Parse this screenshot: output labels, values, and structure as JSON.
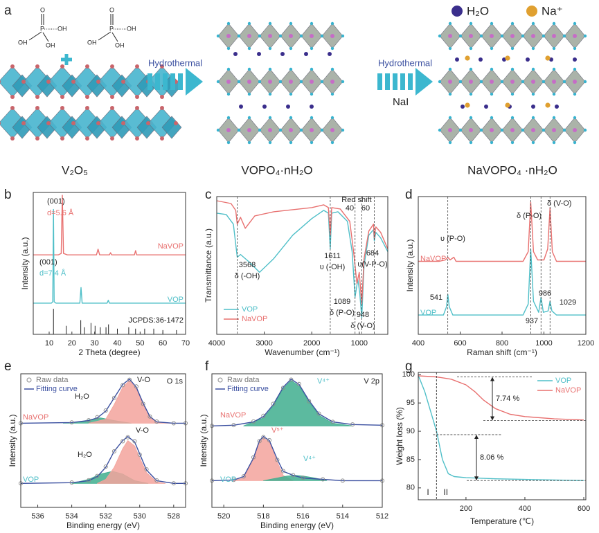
{
  "panel_a": {
    "label": "a",
    "molecule": [
      "O",
      "P",
      "OH",
      "OH",
      "OH"
    ],
    "legend": [
      "H₂O",
      "Na⁺"
    ],
    "arrows": [
      {
        "label": "Hydrothermal"
      },
      {
        "label": "Hydrothermal",
        "reagent": "NaI"
      }
    ],
    "materials": [
      "V₂O₅",
      "VOPO₄·nH₂O",
      "NaVOPO₄ ·nH₂O"
    ]
  },
  "chart_data": [
    {
      "label": "b",
      "type": "line",
      "xlabel": "2 Theta (degree)",
      "ylabel": "Intensity (a.u.)",
      "xlim": [
        3,
        70
      ],
      "ylim": [
        0,
        100
      ],
      "xticks": [
        10,
        20,
        30,
        40,
        50,
        60,
        70
      ],
      "annotations": [
        "(001)",
        "d=5.6 Å",
        "(001)",
        "d=7.4 Å"
      ],
      "series": [
        {
          "name": "NaVOP",
          "style": "line",
          "color": "#e8706f",
          "x": [
            3,
            14,
            15.3,
            15.8,
            16.3,
            18,
            30.8,
            31.5,
            32.2,
            36.5,
            37,
            37.5,
            47.5,
            48,
            48.5,
            60,
            70
          ],
          "values": [
            56,
            56,
            57,
            98,
            57,
            56,
            56,
            60,
            56,
            56,
            57.5,
            56,
            56,
            59,
            56,
            56,
            56
          ]
        },
        {
          "name": "VOP",
          "style": "line",
          "color": "#4fbfc8",
          "x": [
            3,
            11,
            11.6,
            11.9,
            12.2,
            13,
            23.5,
            24,
            24.5,
            35.5,
            36,
            36.5,
            70
          ],
          "values": [
            22,
            22,
            23,
            88,
            23,
            22,
            22,
            33,
            22,
            22,
            24,
            22,
            22
          ]
        },
        {
          "name": "JCPDS:36-1472",
          "style": "stick",
          "color": "#222222",
          "x": [
            11.9,
            17.5,
            23.9,
            25.5,
            28.4,
            30.2,
            32.5,
            35,
            36.1,
            40,
            45,
            48,
            52,
            56,
            60,
            66
          ],
          "values": [
            18,
            6,
            10,
            5,
            8,
            6,
            5,
            5,
            7,
            4,
            5,
            4,
            4,
            4,
            3,
            3
          ]
        }
      ]
    },
    {
      "label": "c",
      "type": "line",
      "xlabel": "Wavenumber (cm⁻¹)",
      "ylabel": "Transmittance (a.u.)",
      "xlim": [
        4000,
        400
      ],
      "ylim": [
        0,
        100
      ],
      "xticks": [
        4000,
        3000,
        2000,
        1000
      ],
      "legend_position": "lower left",
      "peaks": [
        {
          "value": 3568,
          "label": "3568",
          "assignment": "δ (-OH)"
        },
        {
          "value": 1611,
          "label": "1611",
          "assignment": "υ (-OH)"
        },
        {
          "value": 1089,
          "label": "1089",
          "assignment": "δ (P-O)"
        },
        {
          "value": 948,
          "label": "948",
          "assignment": "δ (V-O)"
        },
        {
          "value": 684,
          "label": "684",
          "assignment": "υ(V-P-O)"
        }
      ],
      "red_shift": {
        "label": "Red shift",
        "values": [
          40,
          60
        ]
      },
      "series": [
        {
          "name": "VOP",
          "style": "line",
          "color": "#4fbfc8",
          "x": [
            4000,
            3800,
            3650,
            3568,
            3500,
            3300,
            3100,
            2800,
            2400,
            2000,
            1750,
            1650,
            1611,
            1580,
            1450,
            1250,
            1150,
            1089,
            1030,
            990,
            948,
            900,
            800,
            700,
            684,
            650,
            550,
            400
          ],
          "values": [
            88,
            87,
            80,
            56,
            58,
            52,
            45,
            55,
            72,
            84,
            90,
            88,
            62,
            88,
            89,
            82,
            60,
            27,
            40,
            30,
            12,
            50,
            72,
            76,
            68,
            74,
            70,
            60
          ]
        },
        {
          "name": "NaVOP",
          "style": "line",
          "color": "#e8706f",
          "x": [
            4000,
            3700,
            3600,
            3568,
            3500,
            3400,
            3200,
            2800,
            2000,
            1750,
            1650,
            1611,
            1580,
            1400,
            1200,
            1120,
            1050,
            1000,
            948,
            900,
            800,
            700,
            684,
            650,
            550,
            400
          ],
          "values": [
            97,
            95,
            90,
            80,
            85,
            77,
            86,
            89,
            92,
            94,
            92,
            72,
            92,
            91,
            82,
            60,
            37,
            45,
            22,
            55,
            75,
            80,
            70,
            78,
            74,
            62
          ]
        }
      ]
    },
    {
      "label": "d",
      "type": "line",
      "xlabel": "Raman shift (cm⁻¹)",
      "ylabel": "Intensity (a.u.)",
      "xlim": [
        400,
        1200
      ],
      "ylim": [
        0,
        100
      ],
      "xticks": [
        400,
        600,
        800,
        1000,
        1200
      ],
      "annotations": [
        "υ (P-O)",
        "δ (P-O)",
        "δ (V-O)"
      ],
      "peaks": [
        {
          "value": 541,
          "label": "541"
        },
        {
          "value": 937,
          "label": "937"
        },
        {
          "value": 986,
          "label": "986"
        },
        {
          "value": 1029,
          "label": "1029"
        }
      ],
      "series": [
        {
          "name": "NaVOP",
          "style": "line",
          "color": "#e8706f",
          "x": [
            400,
            500,
            530,
            541,
            552,
            570,
            580,
            900,
            925,
            937,
            950,
            970,
            1000,
            1018,
            1029,
            1040,
            1060,
            1200
          ],
          "values": [
            53,
            53,
            54,
            56,
            54,
            56,
            53,
            53,
            60,
            96,
            60,
            54,
            54,
            62,
            92,
            60,
            53,
            53
          ]
        },
        {
          "name": "VOP",
          "style": "line",
          "color": "#4fbfc8",
          "x": [
            400,
            520,
            535,
            541,
            548,
            565,
            900,
            925,
            937,
            950,
            975,
            986,
            997,
            1020,
            1029,
            1038,
            1060,
            1200
          ],
          "values": [
            14,
            14,
            20,
            29,
            20,
            14,
            14,
            22,
            62,
            24,
            16,
            27,
            16,
            17,
            24,
            17,
            14,
            14
          ]
        }
      ]
    },
    {
      "label": "e",
      "type": "line",
      "xlabel": "Binding energy (eV)",
      "ylabel": "Intensity (a.u.)",
      "xlim": [
        537,
        527.3
      ],
      "ylim": [
        0,
        100
      ],
      "xticks": [
        536,
        534,
        532,
        530,
        528
      ],
      "legend": [
        "Raw data",
        "Fitting curve"
      ],
      "annotations": [
        "O 1s",
        "V-O",
        "H₂O",
        "V-O",
        "H₂O"
      ],
      "series": [
        {
          "style": "area",
          "color": "#3fae8e",
          "x": [
            534.5,
            533.5,
            532.8,
            532.3,
            531.5,
            530.5
          ],
          "values": [
            63,
            64,
            66,
            67,
            65,
            63
          ]
        },
        {
          "style": "area",
          "color": "#f3a39c",
          "x": [
            533,
            532,
            531.5,
            531,
            530.6,
            530.2,
            529.8,
            529.4,
            529,
            528
          ],
          "values": [
            63,
            66,
            77,
            90,
            95,
            89,
            77,
            68,
            64,
            63
          ]
        },
        {
          "style": "line",
          "color": "#3a4fa0",
          "x": [
            537,
            534,
            533,
            532.5,
            532,
            531.5,
            531,
            530.6,
            530.2,
            529.8,
            529.4,
            529,
            528,
            527.3
          ],
          "values": [
            63,
            63.5,
            65,
            67,
            72,
            82,
            92,
            96,
            90,
            78,
            68,
            64,
            63,
            63
          ]
        },
        {
          "name": "NaVOP",
          "style": "markers",
          "color": "#8a8a8a",
          "x": [
            537,
            534,
            533,
            532.5,
            532,
            531.5,
            531,
            530.6,
            530.2,
            529.8,
            529.4,
            529,
            528,
            527.3
          ],
          "values": [
            63,
            63.6,
            65.2,
            67.5,
            72.5,
            82,
            91.5,
            95.5,
            90.5,
            77.5,
            68,
            64.2,
            63,
            63
          ]
        },
        {
          "style": "area",
          "color": "#3fae8e",
          "x": [
            534,
            533,
            532.3,
            531.6,
            531,
            530.3,
            529.5
          ],
          "values": [
            18,
            21,
            25,
            27,
            25,
            20,
            18
          ]
        },
        {
          "style": "area",
          "color": "#f3a39c",
          "x": [
            532.5,
            532,
            531.5,
            531,
            530.7,
            530.3,
            530,
            529.6,
            529,
            528.5
          ],
          "values": [
            18,
            21,
            30,
            44,
            50,
            46,
            37,
            26,
            19,
            18
          ]
        },
        {
          "style": "line",
          "color": "#3a4fa0",
          "x": [
            537,
            534,
            533,
            532.5,
            532,
            531.5,
            531,
            530.7,
            530.3,
            530,
            529.6,
            529,
            528,
            527.3
          ],
          "values": [
            18,
            18.5,
            20,
            23,
            30,
            42,
            50,
            53,
            49,
            40,
            28,
            20,
            18,
            18
          ]
        },
        {
          "name": "VOP",
          "style": "markers",
          "color": "#8a8a8a",
          "x": [
            537,
            534,
            533,
            532.5,
            532,
            531.5,
            531,
            530.7,
            530.3,
            530,
            529.6,
            529,
            528,
            527.3
          ],
          "values": [
            18,
            18.6,
            20.3,
            23.5,
            30.5,
            42,
            49.5,
            52.5,
            49.5,
            39.5,
            28.5,
            20.2,
            18,
            18
          ]
        }
      ]
    },
    {
      "label": "f",
      "type": "line",
      "xlabel": "Binding energy (eV)",
      "ylabel": "Intensity (a.u.)",
      "xlim": [
        520.6,
        512
      ],
      "ylim": [
        0,
        100
      ],
      "xticks": [
        520,
        518,
        516,
        514,
        512
      ],
      "legend": [
        "Raw data",
        "Fitting curve"
      ],
      "annotations": [
        "V 2p",
        "V⁴⁺",
        "V⁵⁺",
        "V⁴⁺"
      ],
      "series": [
        {
          "style": "area",
          "color": "#3fae8e",
          "x": [
            519,
            518,
            517.5,
            517,
            516.6,
            516.2,
            515.7,
            515.2,
            514.5,
            513.5
          ],
          "values": [
            61,
            67,
            76,
            89,
            95,
            91,
            79,
            69,
            63,
            61
          ]
        },
        {
          "style": "line",
          "color": "#3a4fa0",
          "x": [
            520.6,
            519.5,
            518.5,
            518,
            517.5,
            517,
            516.6,
            516.2,
            515.7,
            515.2,
            514.5,
            513.5,
            512
          ],
          "values": [
            61,
            61.5,
            64,
            68,
            77,
            90,
            96,
            92,
            80,
            70,
            64,
            62,
            61.5
          ]
        },
        {
          "name": "NaVOP",
          "style": "markers",
          "color": "#8a8a8a",
          "x": [
            520.6,
            519.5,
            518.5,
            518,
            517.5,
            517,
            516.6,
            516.2,
            515.7,
            515.2,
            514.5,
            513.5,
            512
          ],
          "values": [
            61,
            61.6,
            64.3,
            68.5,
            77.5,
            89.5,
            95.6,
            92.3,
            79.5,
            70.2,
            64,
            62.1,
            61.5
          ]
        },
        {
          "style": "area",
          "color": "#f3a39c",
          "x": [
            519.5,
            519,
            518.5,
            518.2,
            518,
            517.7,
            517.3,
            517,
            516.5
          ],
          "values": [
            20,
            22,
            36,
            49,
            52,
            49,
            34,
            24,
            20
          ]
        },
        {
          "style": "area",
          "color": "#3fae8e",
          "x": [
            518,
            517.3,
            516.8,
            516.4,
            516,
            515.4,
            514.8
          ],
          "values": [
            20,
            22,
            23.5,
            24,
            23.5,
            22,
            20
          ]
        },
        {
          "style": "line",
          "color": "#3a4fa0",
          "x": [
            520.6,
            519.5,
            519,
            518.5,
            518.2,
            518,
            517.7,
            517.3,
            517,
            516.5,
            516,
            515,
            514,
            512
          ],
          "values": [
            20,
            20.5,
            23,
            37,
            50,
            53,
            50,
            36,
            27,
            24,
            22,
            21,
            20,
            20
          ]
        },
        {
          "name": "VOP",
          "style": "markers",
          "color": "#8a8a8a",
          "x": [
            520.6,
            519.5,
            519,
            518.5,
            518.2,
            518,
            517.7,
            517.3,
            517,
            516.5,
            516,
            515,
            514,
            512
          ],
          "values": [
            20,
            20.6,
            23.2,
            37.5,
            49.6,
            52.6,
            50.3,
            35.6,
            27.2,
            24.1,
            22.2,
            21,
            20,
            20
          ]
        }
      ]
    },
    {
      "label": "g",
      "type": "line",
      "xlabel": "Temperature (℃)",
      "ylabel": "Weight loss (%)",
      "xlim": [
        38,
        607
      ],
      "ylim": [
        77.9,
        100.4
      ],
      "xticks": [
        200,
        400,
        600
      ],
      "yticks": [
        80,
        85,
        90,
        95,
        100
      ],
      "legend_position": "upper right",
      "boundary": 100,
      "regions": [
        "I",
        "II"
      ],
      "steps": [
        {
          "label": "7.74 %",
          "from": 99.6,
          "to": 91.9
        },
        {
          "label": "8.06 %",
          "from": 89.4,
          "to": 81.3
        }
      ],
      "series": [
        {
          "name": "VOP",
          "style": "line",
          "color": "#4fbfc8",
          "x": [
            38,
            60,
            80,
            100,
            120,
            140,
            160,
            200,
            300,
            400,
            500,
            600
          ],
          "values": [
            99.9,
            97,
            93.5,
            90,
            85,
            82.5,
            82,
            81.8,
            81.6,
            81.5,
            81.4,
            81.3
          ]
        },
        {
          "name": "NaVOP",
          "style": "line",
          "color": "#e8706f",
          "x": [
            38,
            100,
            150,
            200,
            230,
            260,
            300,
            350,
            400,
            500,
            600
          ],
          "values": [
            99.8,
            99.6,
            99.2,
            98.2,
            97,
            95.5,
            94,
            93,
            92.6,
            92.2,
            92
          ]
        }
      ]
    }
  ]
}
